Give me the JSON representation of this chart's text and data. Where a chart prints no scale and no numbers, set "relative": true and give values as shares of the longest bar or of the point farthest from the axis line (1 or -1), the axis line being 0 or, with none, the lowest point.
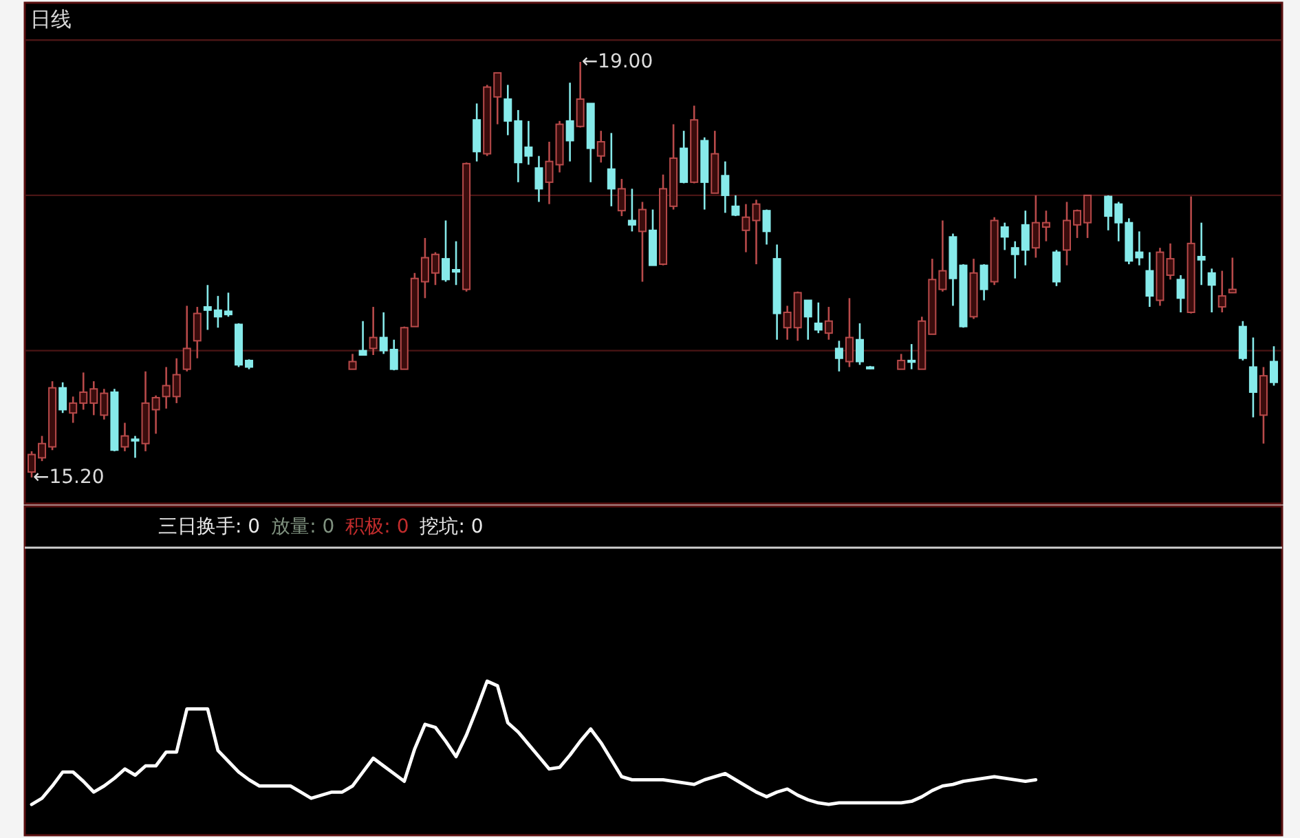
{
  "chart_data": [
    {
      "type": "candlestick",
      "title": "日线",
      "categories": [
        null,
        null,
        null,
        null,
        null,
        null,
        null,
        null,
        null,
        null,
        null,
        null,
        null,
        null,
        null,
        null,
        null,
        null,
        null,
        null,
        null,
        null,
        null,
        null,
        null,
        null,
        null,
        null,
        null,
        null,
        null,
        null,
        null,
        null,
        null,
        null,
        null,
        null,
        null,
        null,
        null,
        null,
        null,
        null,
        null,
        null,
        null,
        null,
        null,
        null,
        null,
        null,
        null,
        null,
        null,
        null,
        null,
        null,
        null,
        null,
        null,
        null,
        null,
        null,
        null,
        null,
        null,
        null,
        null,
        null,
        null,
        null,
        null,
        null,
        null,
        null,
        null,
        null,
        null,
        null,
        null,
        null,
        null,
        null,
        null,
        null,
        null,
        null,
        null,
        null,
        null,
        null,
        null,
        null,
        null,
        null,
        null,
        null,
        null,
        null,
        null,
        null,
        null,
        null,
        null,
        null,
        null,
        null,
        null,
        null,
        null,
        null,
        null,
        null,
        null,
        null,
        null,
        null,
        null,
        null,
        null
      ],
      "ohlc": [
        [
          15.25,
          15.44,
          15.2,
          15.41
        ],
        [
          15.38,
          15.58,
          15.35,
          15.51
        ],
        [
          15.48,
          16.08,
          15.45,
          16.02
        ],
        [
          16.02,
          16.07,
          15.79,
          15.82
        ],
        [
          15.79,
          15.94,
          15.7,
          15.88
        ],
        [
          15.88,
          16.16,
          15.82,
          15.98
        ],
        [
          15.88,
          16.08,
          15.77,
          16.01
        ],
        [
          15.77,
          16.01,
          15.73,
          15.97
        ],
        [
          15.98,
          16.01,
          15.44,
          15.45
        ],
        [
          15.48,
          15.7,
          15.44,
          15.58
        ],
        [
          15.55,
          15.58,
          15.38,
          15.54
        ],
        [
          15.51,
          16.17,
          15.44,
          15.88
        ],
        [
          15.82,
          15.95,
          15.6,
          15.93
        ],
        [
          15.94,
          16.21,
          15.83,
          16.04
        ],
        [
          15.94,
          16.29,
          15.88,
          16.14
        ],
        [
          16.19,
          16.77,
          16.17,
          16.38
        ],
        [
          16.45,
          16.76,
          16.29,
          16.7
        ],
        [
          16.76,
          16.96,
          16.55,
          16.73
        ],
        [
          16.73,
          16.86,
          16.57,
          16.67
        ],
        [
          16.72,
          16.89,
          16.67,
          16.69
        ],
        [
          16.6,
          16.61,
          16.21,
          16.23
        ],
        [
          16.27,
          16.28,
          16.19,
          16.21
        ],
        null,
        null,
        null,
        null,
        null,
        null,
        null,
        null,
        null,
        [
          16.19,
          16.33,
          16.19,
          16.26
        ],
        [
          16.36,
          16.63,
          16.32,
          16.32
        ],
        [
          16.38,
          16.76,
          16.32,
          16.48
        ],
        [
          16.48,
          16.71,
          16.33,
          16.36
        ],
        [
          16.37,
          16.46,
          16.18,
          16.19
        ],
        [
          16.19,
          16.58,
          16.19,
          16.57
        ],
        [
          16.58,
          17.07,
          16.58,
          17.02
        ],
        [
          16.99,
          17.39,
          16.84,
          17.21
        ],
        [
          17.07,
          17.26,
          16.96,
          17.24
        ],
        [
          17.2,
          17.55,
          16.99,
          17.01
        ],
        [
          17.1,
          17.36,
          16.96,
          17.08
        ],
        [
          16.92,
          18.08,
          16.9,
          18.07
        ],
        [
          18.47,
          18.62,
          18.09,
          18.18
        ],
        [
          18.16,
          18.79,
          18.14,
          18.77
        ],
        [
          18.68,
          18.9,
          18.43,
          18.9
        ],
        [
          18.66,
          18.79,
          18.33,
          18.46
        ],
        [
          18.46,
          18.56,
          17.9,
          18.08
        ],
        [
          18.22,
          18.46,
          18.06,
          18.14
        ],
        [
          18.03,
          18.14,
          17.72,
          17.84
        ],
        [
          17.9,
          18.27,
          17.7,
          18.09
        ],
        [
          18.06,
          18.46,
          17.99,
          18.43
        ],
        [
          18.46,
          18.81,
          18.09,
          18.28
        ],
        [
          18.41,
          19.0,
          18.4,
          18.66
        ],
        [
          18.62,
          18.62,
          17.9,
          18.21
        ],
        [
          18.14,
          18.37,
          18.08,
          18.27
        ],
        [
          18.02,
          18.35,
          17.68,
          17.84
        ],
        [
          17.64,
          17.93,
          17.59,
          17.84
        ],
        [
          17.55,
          17.84,
          17.45,
          17.51
        ],
        [
          17.45,
          17.72,
          16.99,
          17.65
        ],
        [
          17.46,
          17.65,
          17.14,
          17.14
        ],
        [
          17.15,
          17.97,
          17.14,
          17.84
        ],
        [
          17.68,
          18.43,
          17.65,
          18.12
        ],
        [
          18.21,
          18.37,
          17.89,
          17.9
        ],
        [
          17.9,
          18.6,
          17.89,
          18.47
        ],
        [
          18.28,
          18.31,
          17.65,
          17.9
        ],
        [
          17.8,
          18.37,
          17.8,
          18.16
        ],
        [
          17.96,
          18.09,
          17.62,
          17.78
        ],
        [
          17.68,
          17.78,
          17.59,
          17.6
        ],
        [
          17.46,
          17.7,
          17.26,
          17.58
        ],
        [
          17.55,
          17.74,
          17.15,
          17.7
        ],
        [
          17.64,
          17.65,
          17.33,
          17.45
        ],
        [
          17.2,
          17.33,
          16.46,
          16.7
        ],
        [
          16.57,
          16.77,
          16.46,
          16.71
        ],
        [
          16.57,
          16.9,
          16.45,
          16.89
        ],
        [
          16.82,
          16.82,
          16.46,
          16.67
        ],
        [
          16.61,
          16.8,
          16.52,
          16.55
        ],
        [
          16.52,
          16.76,
          16.46,
          16.63
        ],
        [
          16.38,
          16.45,
          16.17,
          16.29
        ],
        [
          16.26,
          16.84,
          16.21,
          16.48
        ],
        [
          16.46,
          16.61,
          16.23,
          16.26
        ],
        [
          16.21,
          16.22,
          16.19,
          16.2
        ],
        null,
        null,
        [
          16.19,
          16.33,
          16.19,
          16.27
        ],
        [
          16.27,
          16.42,
          16.19,
          16.26
        ],
        [
          16.19,
          16.67,
          16.19,
          16.63
        ],
        [
          16.51,
          17.2,
          16.51,
          17.01
        ],
        [
          16.92,
          17.55,
          16.9,
          17.09
        ],
        [
          17.4,
          17.43,
          16.77,
          17.02
        ],
        [
          17.14,
          17.15,
          16.57,
          16.58
        ],
        [
          16.67,
          17.2,
          16.65,
          17.07
        ],
        [
          17.14,
          17.15,
          16.82,
          16.92
        ],
        [
          16.99,
          17.58,
          16.96,
          17.55
        ],
        [
          17.49,
          17.53,
          17.28,
          17.4
        ],
        [
          17.3,
          17.36,
          17.02,
          17.24
        ],
        [
          17.51,
          17.64,
          17.14,
          17.28
        ],
        [
          17.3,
          17.78,
          17.21,
          17.53
        ],
        [
          17.49,
          17.64,
          17.36,
          17.53
        ],
        [
          17.26,
          17.28,
          16.95,
          16.99
        ],
        [
          17.28,
          17.72,
          17.14,
          17.55
        ],
        [
          17.51,
          17.65,
          17.39,
          17.64
        ],
        [
          17.53,
          17.78,
          17.39,
          17.78
        ],
        null,
        [
          17.77,
          17.78,
          17.46,
          17.59
        ],
        [
          17.7,
          17.72,
          17.36,
          17.53
        ],
        [
          17.53,
          17.57,
          17.15,
          17.18
        ],
        [
          17.26,
          17.45,
          17.14,
          17.21
        ],
        [
          17.09,
          17.26,
          16.76,
          16.86
        ],
        [
          16.82,
          17.3,
          16.77,
          17.26
        ],
        [
          17.05,
          17.34,
          17.01,
          17.2
        ],
        [
          17.01,
          17.05,
          16.71,
          16.84
        ],
        [
          16.71,
          17.77,
          16.7,
          17.34
        ],
        [
          17.22,
          17.53,
          16.96,
          17.19
        ],
        [
          17.07,
          17.11,
          16.71,
          16.96
        ],
        [
          16.76,
          17.09,
          16.71,
          16.86
        ],
        [
          16.89,
          17.21,
          16.89,
          16.92
        ],
        [
          16.58,
          16.63,
          16.27,
          16.29
        ],
        [
          16.21,
          16.48,
          15.75,
          15.98
        ],
        [
          15.77,
          16.21,
          15.51,
          16.13
        ],
        [
          16.26,
          16.4,
          16.04,
          16.07
        ]
      ],
      "ref_lines": [
        {
          "axis": "y",
          "value": 19.2,
          "color": "#4a1515"
        },
        {
          "axis": "y",
          "value": 17.78,
          "color": "#4a1515"
        },
        {
          "axis": "y",
          "value": 16.36,
          "color": "#4a1515"
        }
      ],
      "annotations": [
        "←19.00",
        "←15.20"
      ]
    },
    {
      "type": "line",
      "relative": true,
      "categories": [
        null,
        null,
        null,
        null,
        null,
        null,
        null,
        null,
        null,
        null,
        null,
        null,
        null,
        null,
        null,
        null,
        null,
        null,
        null,
        null,
        null,
        null,
        null,
        null,
        null,
        null,
        null,
        null,
        null,
        null,
        null,
        null,
        null,
        null,
        null,
        null,
        null,
        null,
        null,
        null,
        null,
        null,
        null,
        null,
        null,
        null,
        null,
        null,
        null,
        null,
        null,
        null,
        null,
        null,
        null,
        null,
        null,
        null,
        null,
        null,
        null,
        null,
        null,
        null,
        null,
        null,
        null,
        null,
        null,
        null,
        null,
        null,
        null,
        null,
        null,
        null,
        null,
        null,
        null,
        null,
        null,
        null,
        null,
        null,
        null,
        null,
        null,
        null,
        null,
        null,
        null,
        null,
        null,
        null,
        null,
        null,
        null,
        null,
        null,
        null,
        null,
        null,
        null,
        null,
        null,
        null,
        null,
        null,
        null,
        null,
        null,
        null,
        null,
        null,
        null,
        null,
        null,
        null,
        null,
        null,
        null
      ],
      "series": [
        {
          "color": "#ffffff",
          "values": [
            0.2,
            0.24,
            0.32,
            0.41,
            0.41,
            0.35,
            0.28,
            0.32,
            0.37,
            0.43,
            0.39,
            0.45,
            0.45,
            0.54,
            0.54,
            0.82,
            0.82,
            0.82,
            0.55,
            0.48,
            0.41,
            0.36,
            0.32,
            0.32,
            0.32,
            0.32,
            0.28,
            0.24,
            0.26,
            0.28,
            0.28,
            0.32,
            0.41,
            0.5,
            0.45,
            0.4,
            0.35,
            0.56,
            0.72,
            0.7,
            0.61,
            0.51,
            0.65,
            0.82,
            1.0,
            0.97,
            0.73,
            0.67,
            0.59,
            0.51,
            0.43,
            0.44,
            0.52,
            0.61,
            0.69,
            0.6,
            0.49,
            0.38,
            0.36,
            0.36,
            0.36,
            0.36,
            0.35,
            0.34,
            0.33,
            0.36,
            0.38,
            0.4,
            0.36,
            0.32,
            0.28,
            0.25,
            0.28,
            0.3,
            0.26,
            0.23,
            0.21,
            0.2,
            0.21,
            0.21,
            0.21,
            0.21,
            0.21,
            0.21,
            0.21,
            0.22,
            0.25,
            0.29,
            0.32,
            0.33,
            0.35,
            0.36,
            0.37,
            0.38,
            0.37,
            0.36,
            0.35,
            0.36,
            null,
            null,
            null,
            null,
            null,
            null,
            null,
            null,
            null,
            null,
            null,
            null,
            null,
            null,
            null,
            null,
            null,
            null,
            null,
            null,
            null,
            null,
            null
          ]
        }
      ],
      "annotations": [
        "三日换手: 0",
        "放量: 0",
        "积极: 0",
        "挖坑: 0"
      ]
    }
  ]
}
